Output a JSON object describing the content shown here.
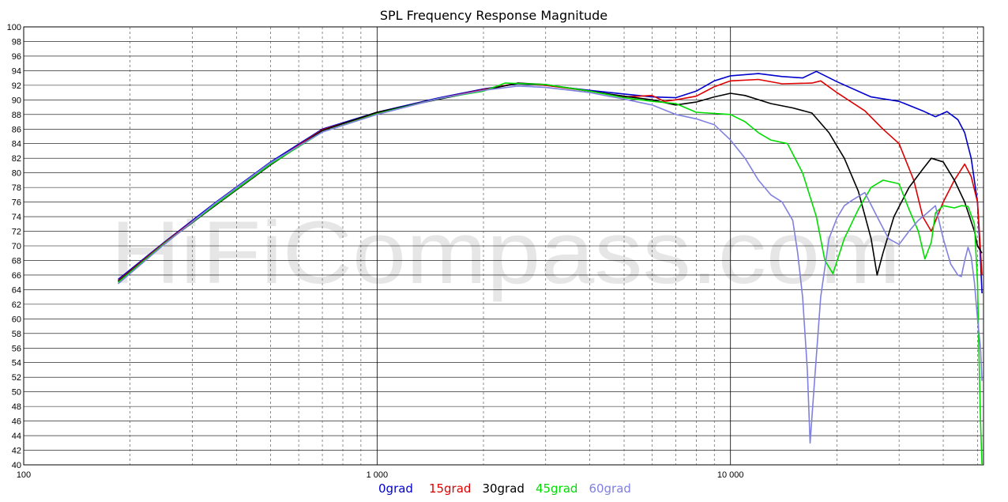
{
  "chart_data": {
    "type": "line",
    "title": "SPL Frequency Response Magnitude",
    "watermark": "HiFiCompass.com",
    "xscale": "log",
    "xlim": [
      100,
      52000
    ],
    "ylim": [
      40,
      100
    ],
    "grid": true,
    "legend_position": "bottom-center",
    "y_ticks": [
      40,
      42,
      44,
      46,
      48,
      50,
      52,
      54,
      56,
      58,
      60,
      62,
      64,
      66,
      68,
      70,
      72,
      74,
      76,
      78,
      80,
      82,
      84,
      86,
      88,
      90,
      92,
      94,
      96,
      98,
      100
    ],
    "x_tick_labels": [
      {
        "value": 100,
        "label": "100"
      },
      {
        "value": 1000,
        "label": "1 000"
      },
      {
        "value": 10000,
        "label": "10 000"
      }
    ],
    "series": [
      {
        "name": "0grad",
        "color": "#0000cc",
        "points": [
          [
            185,
            65.4
          ],
          [
            250,
            70.5
          ],
          [
            350,
            76
          ],
          [
            500,
            81.5
          ],
          [
            700,
            86
          ],
          [
            1000,
            88.3
          ],
          [
            1500,
            90.3
          ],
          [
            2000,
            91.5
          ],
          [
            2500,
            92.2
          ],
          [
            3000,
            92
          ],
          [
            4000,
            91.3
          ],
          [
            5000,
            90.8
          ],
          [
            6000,
            90.4
          ],
          [
            7000,
            90.3
          ],
          [
            8000,
            91.2
          ],
          [
            9000,
            92.6
          ],
          [
            10000,
            93.3
          ],
          [
            12000,
            93.6
          ],
          [
            14000,
            93.2
          ],
          [
            16000,
            93
          ],
          [
            17500,
            93.9
          ],
          [
            20000,
            92.5
          ],
          [
            25000,
            90.4
          ],
          [
            30000,
            89.8
          ],
          [
            35000,
            88.5
          ],
          [
            38000,
            87.7
          ],
          [
            41000,
            88.4
          ],
          [
            44000,
            87.3
          ],
          [
            46000,
            85.5
          ],
          [
            48000,
            82
          ],
          [
            50000,
            76
          ],
          [
            51000,
            68
          ],
          [
            51500,
            63.5
          ]
        ]
      },
      {
        "name": "15grad",
        "color": "#dd0000",
        "points": [
          [
            185,
            65.2
          ],
          [
            250,
            70.4
          ],
          [
            350,
            75.8
          ],
          [
            500,
            81.3
          ],
          [
            700,
            85.9
          ],
          [
            1000,
            88.2
          ],
          [
            1500,
            90.2
          ],
          [
            2000,
            91.4
          ],
          [
            2500,
            92.3
          ],
          [
            3000,
            92
          ],
          [
            4000,
            91.2
          ],
          [
            5000,
            90.4
          ],
          [
            6000,
            90.6
          ],
          [
            6500,
            89.8
          ],
          [
            7000,
            90
          ],
          [
            8000,
            90.5
          ],
          [
            9000,
            91.8
          ],
          [
            10000,
            92.6
          ],
          [
            12000,
            92.8
          ],
          [
            14000,
            92.2
          ],
          [
            17000,
            92.3
          ],
          [
            18000,
            92.6
          ],
          [
            20000,
            91
          ],
          [
            24000,
            88.5
          ],
          [
            27000,
            86
          ],
          [
            30000,
            84
          ],
          [
            33000,
            79
          ],
          [
            35000,
            74
          ],
          [
            37000,
            72
          ],
          [
            40000,
            76
          ],
          [
            43000,
            79
          ],
          [
            46000,
            81.2
          ],
          [
            48000,
            79.5
          ],
          [
            50000,
            76
          ],
          [
            51500,
            66
          ]
        ]
      },
      {
        "name": "30grad",
        "color": "#000000",
        "points": [
          [
            185,
            65.1
          ],
          [
            250,
            70.3
          ],
          [
            350,
            75.6
          ],
          [
            500,
            81.1
          ],
          [
            700,
            85.8
          ],
          [
            1000,
            88.3
          ],
          [
            1500,
            90.1
          ],
          [
            2000,
            91.3
          ],
          [
            2500,
            92.3
          ],
          [
            3000,
            92.1
          ],
          [
            4000,
            91.2
          ],
          [
            5000,
            90.5
          ],
          [
            6000,
            90
          ],
          [
            7000,
            89.3
          ],
          [
            8000,
            89.7
          ],
          [
            9000,
            90.4
          ],
          [
            10000,
            90.9
          ],
          [
            11000,
            90.6
          ],
          [
            13000,
            89.5
          ],
          [
            15000,
            88.9
          ],
          [
            17000,
            88.2
          ],
          [
            19000,
            85.5
          ],
          [
            21000,
            82
          ],
          [
            23000,
            77.5
          ],
          [
            25000,
            71
          ],
          [
            26000,
            66
          ],
          [
            27000,
            69
          ],
          [
            29000,
            74
          ],
          [
            32000,
            78
          ],
          [
            35000,
            80.5
          ],
          [
            37000,
            82
          ],
          [
            40000,
            81.5
          ],
          [
            43000,
            79
          ],
          [
            46000,
            76
          ],
          [
            49000,
            72
          ],
          [
            50000,
            70
          ],
          [
            51500,
            69
          ]
        ]
      },
      {
        "name": "45grad",
        "color": "#00dd00",
        "points": [
          [
            185,
            65
          ],
          [
            250,
            70.3
          ],
          [
            350,
            75.7
          ],
          [
            500,
            81.2
          ],
          [
            700,
            85.6
          ],
          [
            1000,
            88.1
          ],
          [
            1500,
            90.2
          ],
          [
            2000,
            91.2
          ],
          [
            2300,
            92.3
          ],
          [
            3000,
            92.1
          ],
          [
            4000,
            91.2
          ],
          [
            5000,
            90.3
          ],
          [
            6000,
            89.8
          ],
          [
            7000,
            89.5
          ],
          [
            8000,
            88.3
          ],
          [
            10000,
            88
          ],
          [
            11000,
            87
          ],
          [
            12000,
            85.5
          ],
          [
            13000,
            84.5
          ],
          [
            14500,
            84
          ],
          [
            16000,
            80
          ],
          [
            17500,
            74
          ],
          [
            18500,
            68
          ],
          [
            19500,
            66.2
          ],
          [
            21000,
            71
          ],
          [
            23000,
            75
          ],
          [
            25000,
            78
          ],
          [
            27000,
            79
          ],
          [
            30000,
            78.5
          ],
          [
            32000,
            75
          ],
          [
            34000,
            72
          ],
          [
            35500,
            68.2
          ],
          [
            37000,
            70.5
          ],
          [
            38000,
            74.5
          ],
          [
            40000,
            75.5
          ],
          [
            43000,
            75.2
          ],
          [
            45000,
            75.5
          ],
          [
            47000,
            75.4
          ],
          [
            49000,
            73
          ],
          [
            50000,
            65
          ],
          [
            50500,
            55
          ],
          [
            51000,
            46
          ],
          [
            51500,
            40
          ]
        ]
      },
      {
        "name": "60grad",
        "color": "#8080e0",
        "points": [
          [
            185,
            64.8
          ],
          [
            250,
            70.2
          ],
          [
            350,
            75.9
          ],
          [
            500,
            81.4
          ],
          [
            700,
            85.6
          ],
          [
            1000,
            88
          ],
          [
            1500,
            90.2
          ],
          [
            2000,
            91.3
          ],
          [
            2500,
            91.9
          ],
          [
            3000,
            91.7
          ],
          [
            4000,
            91
          ],
          [
            5000,
            90.1
          ],
          [
            6000,
            89.3
          ],
          [
            7000,
            88
          ],
          [
            8000,
            87.4
          ],
          [
            9000,
            86.6
          ],
          [
            10000,
            84.5
          ],
          [
            11000,
            82
          ],
          [
            12000,
            79
          ],
          [
            13000,
            77
          ],
          [
            14000,
            76
          ],
          [
            15000,
            73.5
          ],
          [
            15500,
            69
          ],
          [
            16000,
            63
          ],
          [
            16500,
            53
          ],
          [
            16800,
            43
          ],
          [
            17200,
            50
          ],
          [
            18000,
            63
          ],
          [
            19000,
            71
          ],
          [
            20000,
            73.8
          ],
          [
            21000,
            75.5
          ],
          [
            22000,
            76.2
          ],
          [
            24000,
            77.3
          ],
          [
            26000,
            74
          ],
          [
            28000,
            71
          ],
          [
            30000,
            70.2
          ],
          [
            32000,
            72
          ],
          [
            34000,
            73.5
          ],
          [
            36000,
            74.5
          ],
          [
            38000,
            75.5
          ],
          [
            40000,
            71
          ],
          [
            42000,
            67.5
          ],
          [
            44000,
            66
          ],
          [
            45000,
            65.8
          ],
          [
            46000,
            68
          ],
          [
            47000,
            69.8
          ],
          [
            48000,
            68.5
          ],
          [
            49000,
            65
          ],
          [
            50000,
            60
          ],
          [
            51000,
            56
          ],
          [
            51500,
            51.5
          ]
        ]
      }
    ]
  }
}
